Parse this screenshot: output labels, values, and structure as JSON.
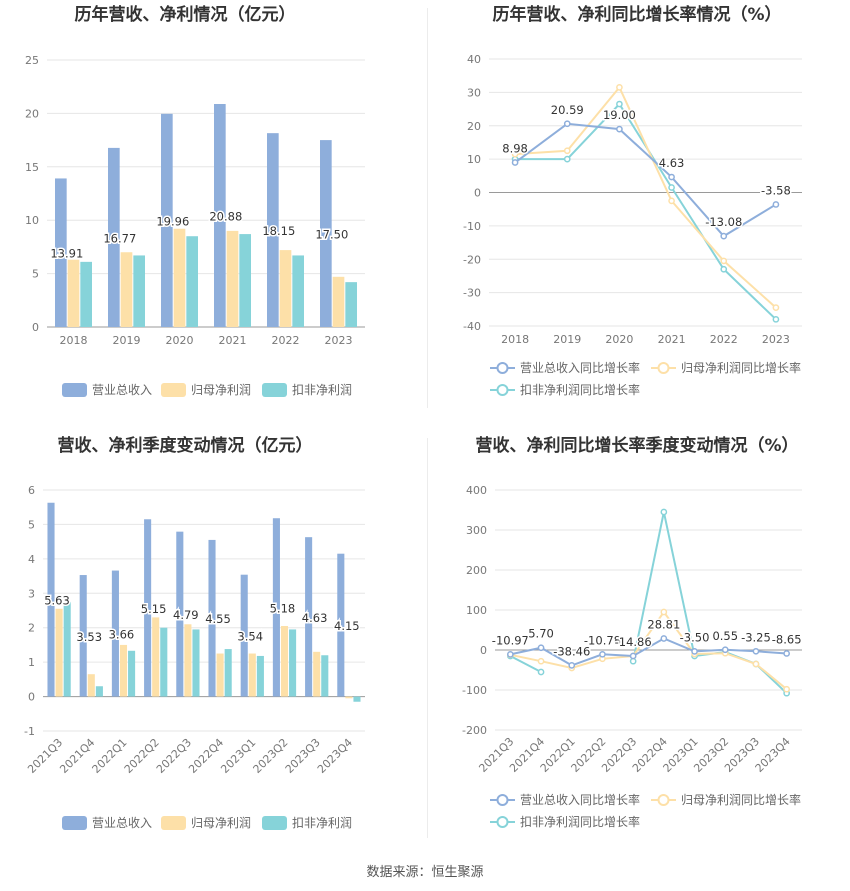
{
  "source": "数据来源：恒生聚源",
  "colors": {
    "revenue": "#8eaedb",
    "netprofit": "#fde0a8",
    "deducted": "#86d3d9"
  },
  "chart_data": [
    {
      "type": "bar",
      "title": "历年营收、净利情况（亿元）",
      "categories": [
        "2018",
        "2019",
        "2020",
        "2021",
        "2022",
        "2023"
      ],
      "ylim": [
        0,
        25
      ],
      "yticks": [
        0,
        5,
        10,
        15,
        20,
        25
      ],
      "grid": true,
      "legend": "bottom",
      "series": [
        {
          "name": "营业总收入",
          "values": [
            13.91,
            16.77,
            19.96,
            20.88,
            18.15,
            17.5
          ],
          "labels": [
            "13.91",
            "16.77",
            "19.96",
            "20.88",
            "18.15",
            "17.50"
          ]
        },
        {
          "name": "归母净利润",
          "values": [
            6.3,
            7.0,
            9.2,
            9.0,
            7.2,
            4.7
          ]
        },
        {
          "name": "扣非净利润",
          "values": [
            6.1,
            6.7,
            8.5,
            8.7,
            6.7,
            4.2
          ]
        }
      ]
    },
    {
      "type": "line",
      "title": "历年营收、净利同比增长率情况（%）",
      "categories": [
        "2018",
        "2019",
        "2020",
        "2021",
        "2022",
        "2023"
      ],
      "ylim": [
        -40,
        40
      ],
      "yticks": [
        -40,
        -30,
        -20,
        -10,
        0,
        10,
        20,
        30,
        40
      ],
      "grid": true,
      "legend": "bottom",
      "series": [
        {
          "name": "营业总收入同比增长率",
          "values": [
            8.98,
            20.59,
            19.0,
            4.63,
            -13.08,
            -3.58
          ],
          "labels": [
            "8.98",
            "20.59",
            "19.00",
            "4.63",
            "-13.08",
            "-3.58"
          ]
        },
        {
          "name": "归母净利润同比增长率",
          "values": [
            11.5,
            12.5,
            31.5,
            -2.5,
            -20.5,
            -34.5
          ]
        },
        {
          "name": "扣非净利润同比增长率",
          "values": [
            10.0,
            10.0,
            26.5,
            1.5,
            -23.0,
            -38.0
          ]
        }
      ]
    },
    {
      "type": "bar",
      "title": "营收、净利季度变动情况（亿元）",
      "categories": [
        "2021Q3",
        "2021Q4",
        "2022Q1",
        "2022Q2",
        "2022Q3",
        "2022Q4",
        "2023Q1",
        "2023Q2",
        "2023Q3",
        "2023Q4"
      ],
      "ylim": [
        -1,
        6
      ],
      "yticks": [
        -1,
        0,
        1,
        2,
        3,
        4,
        5,
        6
      ],
      "grid": true,
      "legend": "bottom",
      "series": [
        {
          "name": "营业总收入",
          "values": [
            5.63,
            3.53,
            3.66,
            5.15,
            4.79,
            4.55,
            3.54,
            5.18,
            4.63,
            4.15
          ],
          "labels": [
            "5.63",
            "3.53",
            "3.66",
            "5.15",
            "4.79",
            "4.55",
            "3.54",
            "5.18",
            "4.63",
            "4.15"
          ]
        },
        {
          "name": "归母净利润",
          "values": [
            2.55,
            0.65,
            1.5,
            2.3,
            2.1,
            1.25,
            1.25,
            2.05,
            1.3,
            -0.05
          ]
        },
        {
          "name": "扣非净利润",
          "values": [
            2.75,
            0.3,
            1.33,
            2.0,
            1.95,
            1.38,
            1.18,
            1.95,
            1.2,
            -0.15
          ]
        }
      ]
    },
    {
      "type": "line",
      "title": "营收、净利同比增长率季度变动情况（%）",
      "categories": [
        "2021Q3",
        "2021Q4",
        "2022Q1",
        "2022Q2",
        "2022Q3",
        "2022Q4",
        "2023Q1",
        "2023Q2",
        "2023Q3",
        "2023Q4"
      ],
      "ylim": [
        -200,
        400
      ],
      "yticks": [
        -200,
        -100,
        0,
        100,
        200,
        300,
        400
      ],
      "grid": true,
      "legend": "bottom",
      "series": [
        {
          "name": "营业总收入同比增长率",
          "values": [
            -10.97,
            5.7,
            -38.46,
            -10.78,
            -14.86,
            28.81,
            -3.5,
            0.55,
            -3.25,
            -8.65
          ],
          "labels": [
            "-10.97",
            "5.70",
            "-38.46",
            "-10.78",
            "-14.86",
            "28.81",
            "-3.50",
            "0.55",
            "-3.25",
            "-8.65"
          ]
        },
        {
          "name": "归母净利润同比增长率",
          "values": [
            -12,
            -28,
            -45,
            -22,
            -15,
            95,
            -10,
            -8,
            -35,
            -98
          ]
        },
        {
          "name": "扣非净利润同比增长率",
          "values": [
            -15,
            -55,
            null,
            null,
            -28,
            345,
            -15,
            -5,
            -35,
            -108
          ]
        }
      ]
    }
  ]
}
